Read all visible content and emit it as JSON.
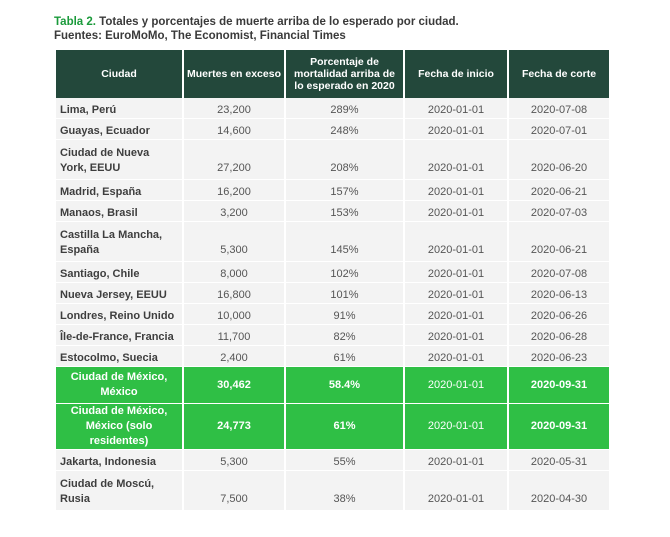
{
  "caption": {
    "tag": "Tabla 2.",
    "title": " Totales y porcentajes de muerte arriba de lo esperado por ciudad.",
    "sources": "Fuentes: EuroMoMo, The Economist, Financial Times"
  },
  "table": {
    "headers": [
      "Ciudad",
      "Muertes en exceso",
      "Porcentaje de mortalidad arriba de lo esperado en 2020",
      "Fecha de inicio",
      "Fecha de corte"
    ],
    "rows": [
      [
        "Lima, Perú",
        "23,200",
        "289%",
        "2020-01-01",
        "2020-07-08"
      ],
      [
        "Guayas, Ecuador",
        "14,600",
        "248%",
        "2020-01-01",
        "2020-07-01"
      ],
      [
        "Ciudad de Nueva York, EEUU",
        "27,200",
        "208%",
        "2020-01-01",
        "2020-06-20"
      ],
      [
        "Madrid, España",
        "16,200",
        "157%",
        "2020-01-01",
        "2020-06-21"
      ],
      [
        "Manaos, Brasil",
        "3,200",
        "153%",
        "2020-01-01",
        "2020-07-03"
      ],
      [
        "Castilla La Mancha, España",
        "5,300",
        "145%",
        "2020-01-01",
        "2020-06-21"
      ],
      [
        "Santiago, Chile",
        "8,000",
        "102%",
        "2020-01-01",
        "2020-07-08"
      ],
      [
        "Nueva Jersey, EEUU",
        "16,800",
        "101%",
        "2020-01-01",
        "2020-06-13"
      ],
      [
        "Londres, Reino Unido",
        "10,000",
        "91%",
        "2020-01-01",
        "2020-06-26"
      ],
      [
        "Île-de-France, Francia",
        "11,700",
        "82%",
        "2020-01-01",
        "2020-06-28"
      ],
      [
        "Estocolmo, Suecia",
        "2,400",
        "61%",
        "2020-01-01",
        "2020-06-23"
      ],
      [
        "Ciudad de México, México",
        "30,462",
        "58.4%",
        "2020-01-01",
        "2020-09-31"
      ],
      [
        "Ciudad de México, México (solo residentes)",
        "24,773",
        "61%",
        "2020-01-01",
        "2020-09-31"
      ],
      [
        "Jakarta, Indonesia",
        "5,300",
        "55%",
        "2020-01-01",
        "2020-05-31"
      ],
      [
        "Ciudad de Moscú, Rusia",
        "7,500",
        "38%",
        "2020-01-01",
        "2020-04-30"
      ]
    ],
    "highlight_color": "#2fbf45",
    "header_color": "#23483b"
  }
}
